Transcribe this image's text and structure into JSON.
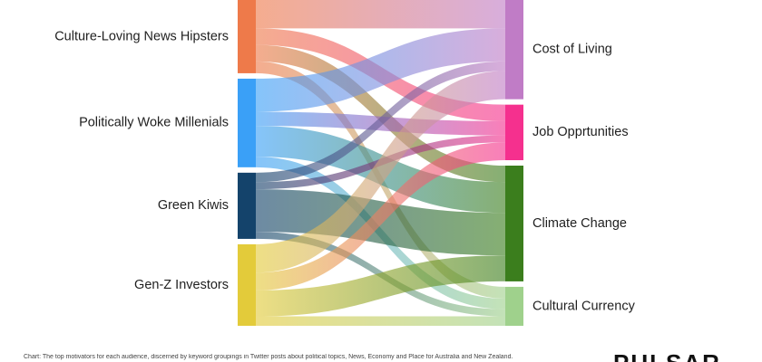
{
  "diagram": {
    "type": "sankey",
    "sources": [
      {
        "id": "culture",
        "label": "Culture-Loving News Hipsters",
        "color": "#ee7a4a"
      },
      {
        "id": "woke",
        "label": "Politically Woke Millenials",
        "color": "#3aa0f7"
      },
      {
        "id": "kiwis",
        "label": "Green Kiwis",
        "color": "#14436b"
      },
      {
        "id": "genz",
        "label": "Gen-Z Investors",
        "color": "#e3cb3a"
      }
    ],
    "targets": [
      {
        "id": "cost",
        "label": "Cost of Living",
        "color": "#c07cc6"
      },
      {
        "id": "job",
        "label": "Job Opprtunities",
        "color": "#f5308e"
      },
      {
        "id": "climate",
        "label": "Climate Change",
        "color": "#3b7e1d"
      },
      {
        "id": "cultural",
        "label": "Cultural Currency",
        "color": "#9fd18c"
      }
    ],
    "flows": [
      {
        "source": "culture",
        "target": "cost",
        "value": 24
      },
      {
        "source": "culture",
        "target": "job",
        "value": 14
      },
      {
        "source": "culture",
        "target": "climate",
        "value": 14
      },
      {
        "source": "culture",
        "target": "cultural",
        "value": 10
      },
      {
        "source": "woke",
        "target": "cost",
        "value": 28
      },
      {
        "source": "woke",
        "target": "job",
        "value": 12
      },
      {
        "source": "woke",
        "target": "climate",
        "value": 26
      },
      {
        "source": "woke",
        "target": "cultural",
        "value": 9
      },
      {
        "source": "kiwis",
        "target": "cost",
        "value": 8
      },
      {
        "source": "kiwis",
        "target": "job",
        "value": 6
      },
      {
        "source": "kiwis",
        "target": "climate",
        "value": 36
      },
      {
        "source": "kiwis",
        "target": "cultural",
        "value": 6
      },
      {
        "source": "genz",
        "target": "cost",
        "value": 24
      },
      {
        "source": "genz",
        "target": "job",
        "value": 15
      },
      {
        "source": "genz",
        "target": "climate",
        "value": 22
      },
      {
        "source": "genz",
        "target": "cultural",
        "value": 8
      }
    ]
  },
  "footer": {
    "caption": "Chart: The top motivators for each audience, discerned by keyword groupings in Twitter posts about political topics, News, Economy and Place for Australia and New Zealand.",
    "brand": "PULSAR"
  }
}
